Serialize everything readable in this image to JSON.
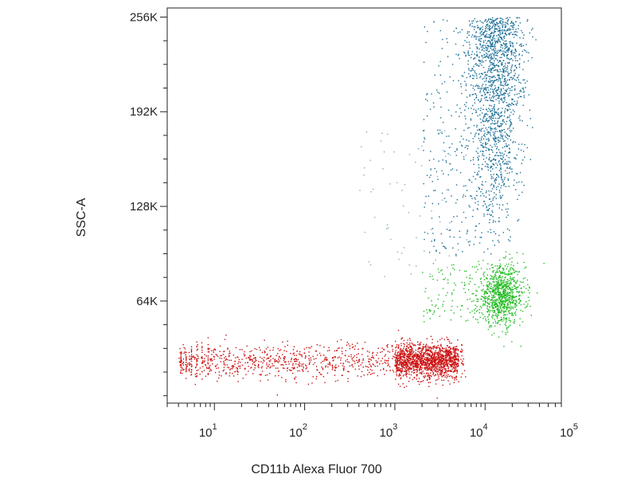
{
  "chart_data": {
    "type": "scatter",
    "title": "",
    "xlabel": "CD11b Alexa Fluor 700",
    "ylabel": "SSC-A",
    "x_scale": "log",
    "xlim": [
      3,
      70000
    ],
    "ylim": [
      -5000,
      262144
    ],
    "x_ticks": [
      {
        "value": 10,
        "base": "10",
        "exp": "1"
      },
      {
        "value": 100,
        "base": "10",
        "exp": "2"
      },
      {
        "value": 1000,
        "base": "10",
        "exp": "3"
      },
      {
        "value": 10000,
        "base": "10",
        "exp": "4"
      },
      {
        "value": 100000,
        "base": "10",
        "exp": "5"
      }
    ],
    "y_ticks": [
      {
        "value": 64000,
        "label": "64K"
      },
      {
        "value": 128000,
        "label": "128K"
      },
      {
        "value": 192000,
        "label": "192K"
      },
      {
        "value": 256000,
        "label": "256K"
      }
    ],
    "grid": false,
    "legend": "none",
    "series": [
      {
        "color": "#cc1111",
        "approx_count": 2200,
        "x_range": [
          4,
          6000
        ],
        "x_dense_range": [
          1000,
          5000
        ],
        "y_center": 24000,
        "y_spread": 6000,
        "sample_points": [
          {
            "x": 5,
            "y": 22000
          },
          {
            "x": 20,
            "y": 25000
          },
          {
            "x": 60,
            "y": 23000
          },
          {
            "x": 200,
            "y": 21000
          },
          {
            "x": 800,
            "y": 24000
          },
          {
            "x": 2000,
            "y": 26000
          },
          {
            "x": 4000,
            "y": 25000
          },
          {
            "x": 5500,
            "y": 22000
          }
        ]
      },
      {
        "color": "#22bb22",
        "approx_count": 900,
        "x_center": 15000,
        "y_center": 68000,
        "y_spread": 10000,
        "sample_points": [
          {
            "x": 9000,
            "y": 60000
          },
          {
            "x": 14000,
            "y": 70000
          },
          {
            "x": 18000,
            "y": 65000
          },
          {
            "x": 20000,
            "y": 80000
          },
          {
            "x": 12000,
            "y": 55000
          }
        ]
      },
      {
        "color": "#1a6e96",
        "approx_count": 1600,
        "x_center": 13000,
        "y_center": 200000,
        "y_range": [
          100000,
          256000
        ],
        "sample_points": [
          {
            "x": 12000,
            "y": 250000
          },
          {
            "x": 11000,
            "y": 210000
          },
          {
            "x": 14000,
            "y": 190000
          },
          {
            "x": 10000,
            "y": 170000
          },
          {
            "x": 15000,
            "y": 150000
          },
          {
            "x": 3000,
            "y": 130000
          },
          {
            "x": 6000,
            "y": 230000
          }
        ]
      }
    ]
  }
}
